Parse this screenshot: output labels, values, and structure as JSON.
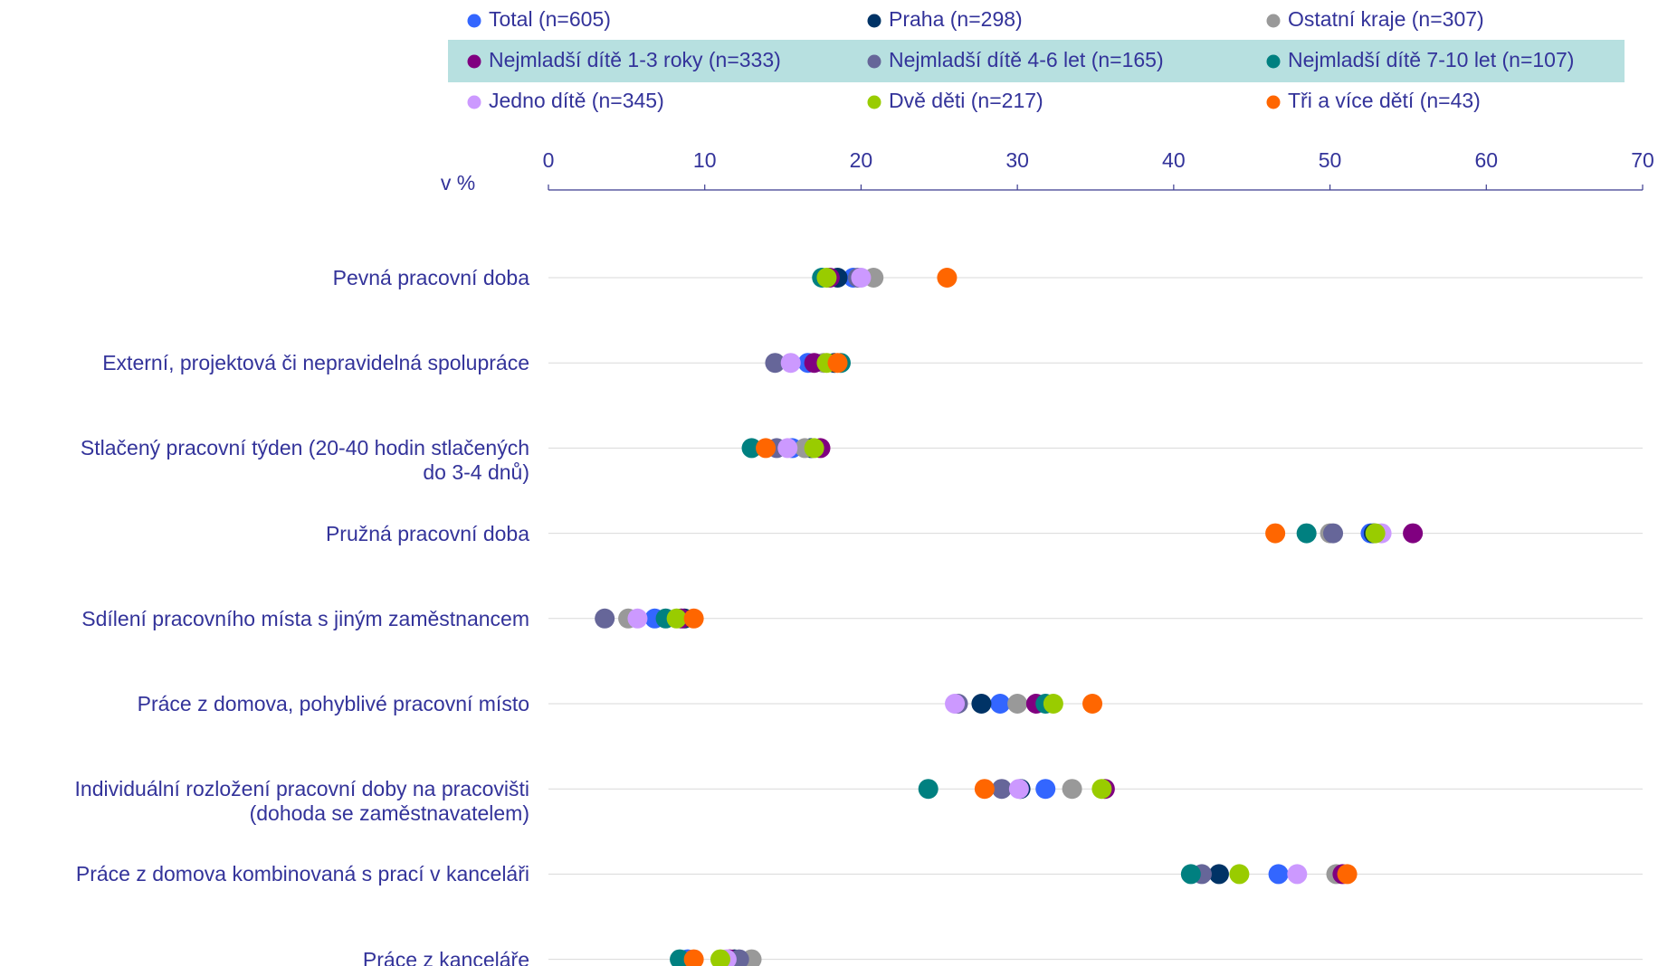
{
  "chart_data": {
    "type": "dot",
    "axis_label": "v %",
    "categories": [
      "Pevná pracovní doba",
      "Externí, projektová či nepravidelná spolupráce",
      "Stlačený pracovní týden (20-40 hodin stlačených\ndo 3-4 dnů)",
      "Pružná pracovní doba",
      "Sdílení pracovního místa s jiným zaměstnancem",
      "Práce z domova, pohyblivé pracovní místo",
      "Individuální rozložení pracovní doby na pracovišti\n(dohoda se zaměstnavatelem)",
      "Práce z domova kombinovaná s prací v kanceláři",
      "Práce z kanceláře"
    ],
    "xlim": [
      0,
      70
    ],
    "xticks": [
      0,
      10,
      20,
      30,
      40,
      50,
      60,
      70
    ],
    "series": [
      {
        "name": "Total (n=605)",
        "color": "#3366ff",
        "values": [
          19.5,
          16.6,
          15.6,
          52.6,
          6.8,
          28.9,
          31.8,
          46.7,
          8.9
        ]
      },
      {
        "name": "Praha (n=298)",
        "color": "#003366",
        "values": [
          18.5,
          18.3,
          16.8,
          52.8,
          8.7,
          27.7,
          30.2,
          42.9,
          11.9
        ]
      },
      {
        "name": "Ostatní kraje (n=307)",
        "color": "#999999",
        "values": [
          20.8,
          17.6,
          16.4,
          50.0,
          5.1,
          30.0,
          33.5,
          50.4,
          13.0
        ]
      },
      {
        "name": "Nejmladší dítě 1-3 roky  (n=333)",
        "color": "#800080",
        "values": [
          18.0,
          17.0,
          17.4,
          55.3,
          8.5,
          31.2,
          35.6,
          50.8,
          11.6
        ]
      },
      {
        "name": "Nejmladší dítě 4-6 let (n=165)",
        "color": "#666699",
        "values": [
          19.8,
          14.5,
          14.6,
          50.2,
          3.6,
          26.2,
          29.0,
          41.8,
          12.2
        ]
      },
      {
        "name": "Nejmladší dítě 7-10 let  (n=107)",
        "color": "#008080",
        "values": [
          17.5,
          18.7,
          13.0,
          48.5,
          7.5,
          31.8,
          24.3,
          41.1,
          8.4
        ]
      },
      {
        "name": "Jedno dítě (n=345)",
        "color": "#cc99ff",
        "values": [
          20.0,
          15.5,
          15.3,
          53.3,
          5.7,
          26.0,
          30.1,
          47.9,
          11.4
        ]
      },
      {
        "name": "Dvě děti (n=217)",
        "color": "#99cc00",
        "values": [
          17.8,
          17.8,
          17.0,
          52.9,
          8.2,
          32.3,
          35.4,
          44.2,
          11.0
        ]
      },
      {
        "name": "Tři a více dětí (n=43)",
        "color": "#ff6600",
        "label_color": "#ff0000",
        "values": [
          25.5,
          18.5,
          13.9,
          46.5,
          9.3,
          34.8,
          27.9,
          51.1,
          9.3
        ]
      }
    ]
  }
}
